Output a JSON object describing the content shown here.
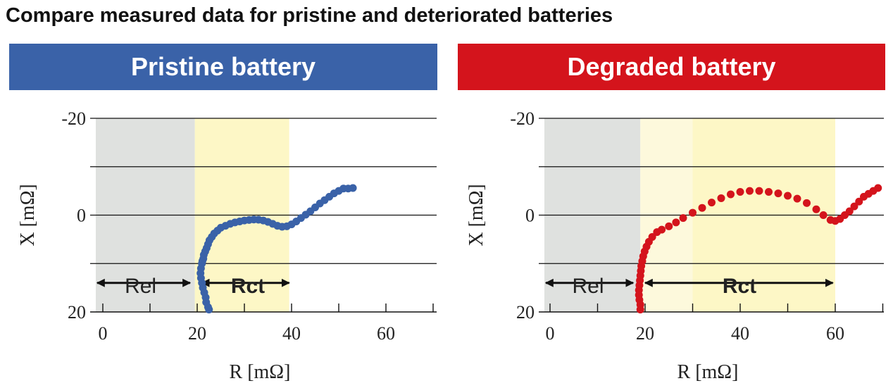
{
  "page": {
    "title": "Compare measured data for pristine and deteriorated batteries"
  },
  "colors": {
    "pristine": "#3a62a8",
    "degraded": "#d4141c",
    "rel_region": "#dfe1df",
    "rct_region": "#fdf7c6",
    "rct_region_light": "#fdf9dc"
  },
  "chart_data": [
    {
      "type": "scatter",
      "title": "Pristine battery",
      "xlabel": "R [mΩ]",
      "ylabel": "X [mΩ]",
      "xlim": [
        -2,
        70
      ],
      "ylim": [
        20,
        -20
      ],
      "y_inverted": true,
      "xticks": [
        "0",
        "20",
        "40",
        "60"
      ],
      "yticks": [
        "-20",
        "0",
        "20"
      ],
      "grid": true,
      "color": "#3a62a8",
      "regions": [
        {
          "label": "Rel",
          "x_from": -2,
          "x_to": 19.5,
          "color": "#dfe1df"
        },
        {
          "label": "Rct",
          "x_from": 19.5,
          "x_to": 39.5,
          "color": "#fdf7c6"
        }
      ],
      "arrows": [
        {
          "label": "Rel",
          "from": -2,
          "to": 18.5,
          "y": 14
        },
        {
          "label": "Rct",
          "from": 21,
          "to": 39.5,
          "y": 14
        }
      ],
      "points": [
        [
          22.5,
          19.5
        ],
        [
          22.3,
          19
        ],
        [
          21.9,
          18
        ],
        [
          21.8,
          17
        ],
        [
          21.5,
          16
        ],
        [
          21.2,
          15
        ],
        [
          21,
          14
        ],
        [
          20.8,
          13
        ],
        [
          20.7,
          12
        ],
        [
          20.8,
          11
        ],
        [
          21,
          10
        ],
        [
          21.1,
          9.5
        ],
        [
          21.3,
          9
        ],
        [
          21.4,
          8.2
        ],
        [
          21.7,
          7.5
        ],
        [
          22,
          6.8
        ],
        [
          22.3,
          6
        ],
        [
          22.6,
          5.2
        ],
        [
          23.1,
          4.5
        ],
        [
          23.6,
          3.8
        ],
        [
          24.3,
          3.2
        ],
        [
          25,
          2.6
        ],
        [
          26,
          2.2
        ],
        [
          27,
          1.8
        ],
        [
          28,
          1.5
        ],
        [
          29,
          1.3
        ],
        [
          30,
          1.1
        ],
        [
          31,
          1
        ],
        [
          32,
          0.9
        ],
        [
          33,
          0.95
        ],
        [
          34,
          1.1
        ],
        [
          35,
          1.4
        ],
        [
          36,
          1.8
        ],
        [
          37,
          2.2
        ],
        [
          38,
          2.4
        ],
        [
          39,
          2.3
        ],
        [
          40,
          1.9
        ],
        [
          41,
          1.3
        ],
        [
          42,
          0.6
        ],
        [
          43,
          -0.1
        ],
        [
          44,
          -0.8
        ],
        [
          45,
          -1.6
        ],
        [
          46,
          -2.4
        ],
        [
          47,
          -3.1
        ],
        [
          48,
          -3.8
        ],
        [
          49,
          -4.5
        ],
        [
          50,
          -5
        ],
        [
          51,
          -5.5
        ],
        [
          52,
          -5.5
        ],
        [
          53,
          -5.6
        ]
      ]
    },
    {
      "type": "scatter",
      "title": "Degraded battery",
      "xlabel": "R [mΩ]",
      "ylabel": "X [mΩ]",
      "xlim": [
        -2,
        70
      ],
      "ylim": [
        20,
        -20
      ],
      "y_inverted": true,
      "xticks": [
        "0",
        "20",
        "40",
        "60"
      ],
      "yticks": [
        "-20",
        "0",
        "20"
      ],
      "grid": true,
      "color": "#d4141c",
      "regions": [
        {
          "label": "Rel",
          "x_from": -2,
          "x_to": 19,
          "color": "#dfe1df"
        },
        {
          "label": "",
          "x_from": 19,
          "x_to": 30,
          "color": "#fdf9dc"
        },
        {
          "label": "Rct",
          "x_from": 30,
          "x_to": 60,
          "color": "#fdf7c6"
        }
      ],
      "arrows": [
        {
          "label": "Rel",
          "from": -2,
          "to": 17.5,
          "y": 14
        },
        {
          "label": "Rct",
          "from": 20,
          "to": 59.5,
          "y": 14
        }
      ],
      "points": [
        [
          19,
          19.5
        ],
        [
          19,
          18.5
        ],
        [
          18.8,
          17.5
        ],
        [
          18.7,
          16.5
        ],
        [
          18.7,
          15.5
        ],
        [
          18.8,
          14.5
        ],
        [
          18.9,
          13.5
        ],
        [
          19,
          12.5
        ],
        [
          19.1,
          11.5
        ],
        [
          19.2,
          10.5
        ],
        [
          19.4,
          9.5
        ],
        [
          19.6,
          8.5
        ],
        [
          19.9,
          7.5
        ],
        [
          20.3,
          6.5
        ],
        [
          20.8,
          5.5
        ],
        [
          21.5,
          4.5
        ],
        [
          22.5,
          3.5
        ],
        [
          23.5,
          3
        ],
        [
          25,
          2.3
        ],
        [
          26.5,
          1.5
        ],
        [
          28,
          0.6
        ],
        [
          30,
          -0.5
        ],
        [
          32,
          -1.5
        ],
        [
          34,
          -2.6
        ],
        [
          36,
          -3.5
        ],
        [
          38,
          -4.3
        ],
        [
          40,
          -4.8
        ],
        [
          42,
          -5
        ],
        [
          44,
          -5
        ],
        [
          46,
          -4.8
        ],
        [
          48,
          -4.5
        ],
        [
          50,
          -4
        ],
        [
          52,
          -3.4
        ],
        [
          54,
          -2.5
        ],
        [
          56,
          -1.2
        ],
        [
          57.5,
          0
        ],
        [
          59,
          1
        ],
        [
          60,
          1.2
        ],
        [
          61,
          0.8
        ],
        [
          62,
          0
        ],
        [
          63,
          -0.8
        ],
        [
          64,
          -1.8
        ],
        [
          65,
          -2.8
        ],
        [
          66,
          -3.8
        ],
        [
          67,
          -4.4
        ],
        [
          68,
          -5
        ],
        [
          69,
          -5.6
        ]
      ]
    }
  ]
}
